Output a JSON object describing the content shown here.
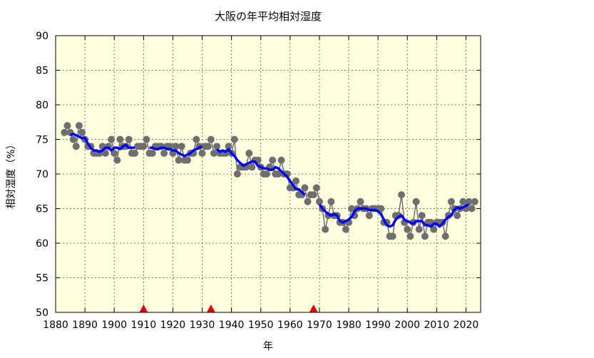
{
  "chart_data": {
    "type": "line",
    "title": "大阪の年平均相対湿度",
    "xlabel": "年",
    "ylabel": "相対湿度（%）",
    "xlim": [
      1880,
      2025
    ],
    "ylim": [
      50,
      90
    ],
    "xticks": [
      1880,
      1890,
      1900,
      1910,
      1920,
      1930,
      1940,
      1950,
      1960,
      1970,
      1980,
      1990,
      2000,
      2010,
      2020
    ],
    "yticks": [
      50,
      55,
      60,
      65,
      70,
      75,
      80,
      85,
      90
    ],
    "grid": true,
    "colors": {
      "background": "#ffffe0",
      "points": "#6e6e6e",
      "moving_average": "#0000ff",
      "markers": "#dd0000"
    },
    "series": [
      {
        "kind": "annual",
        "x": [
          1883,
          1884,
          1885,
          1886,
          1887,
          1888,
          1889,
          1890,
          1891,
          1892,
          1893,
          1894,
          1895,
          1896,
          1897,
          1898,
          1899,
          1900,
          1901,
          1902,
          1903,
          1904,
          1905,
          1906,
          1907,
          1908,
          1909,
          1910,
          1911,
          1912,
          1913,
          1914,
          1915,
          1916,
          1917,
          1918,
          1919,
          1920,
          1921,
          1922,
          1923,
          1924,
          1925,
          1926,
          1927,
          1928,
          1929,
          1930,
          1931,
          1932,
          1933,
          1934,
          1935,
          1936,
          1937,
          1938,
          1939,
          1940,
          1941,
          1942,
          1943,
          1944,
          1945,
          1946,
          1947,
          1948,
          1949,
          1950,
          1951,
          1952,
          1953,
          1954,
          1955,
          1956,
          1957,
          1958,
          1959,
          1960,
          1961,
          1962,
          1963,
          1964,
          1965,
          1966,
          1967,
          1968,
          1969,
          1970,
          1971,
          1972,
          1973,
          1974,
          1975,
          1976,
          1977,
          1978,
          1979,
          1980,
          1981,
          1982,
          1983,
          1984,
          1985,
          1986,
          1987,
          1988,
          1989,
          1990,
          1991,
          1992,
          1993,
          1994,
          1995,
          1996,
          1997,
          1998,
          1999,
          2000,
          2001,
          2002,
          2003,
          2004,
          2005,
          2006,
          2007,
          2008,
          2009,
          2010,
          2011,
          2012,
          2013,
          2014,
          2015,
          2016,
          2017,
          2018,
          2019,
          2020,
          2021,
          2022,
          2023
        ],
        "y": [
          76,
          77,
          76,
          75,
          74,
          77,
          76,
          75,
          74,
          74,
          73,
          73,
          73,
          74,
          73,
          74,
          75,
          73,
          72,
          75,
          74,
          74,
          75,
          73,
          73,
          74,
          74,
          74,
          75,
          73,
          73,
          74,
          74,
          74,
          73,
          74,
          74,
          73,
          74,
          72,
          74,
          72,
          72,
          73,
          73,
          75,
          74,
          73,
          74,
          74,
          75,
          73,
          74,
          73,
          73,
          73,
          74,
          73,
          75,
          70,
          71,
          71,
          71,
          73,
          71,
          72,
          72,
          71,
          70,
          70,
          71,
          72,
          70,
          70,
          72,
          70,
          70,
          68,
          68,
          69,
          67,
          67,
          68,
          66,
          67,
          67,
          68,
          66,
          65,
          62,
          64,
          66,
          64,
          64,
          63,
          63,
          62,
          63,
          65,
          64,
          65,
          66,
          65,
          65,
          64,
          65,
          65,
          65,
          65,
          63,
          63,
          61,
          61,
          64,
          64,
          67,
          63,
          62,
          61,
          63,
          66,
          62,
          64,
          61,
          63,
          63,
          62,
          63,
          63,
          63,
          61,
          64,
          66,
          65,
          64,
          65,
          66,
          65,
          66,
          65,
          66
        ]
      },
      {
        "kind": "5-year moving average",
        "window": 5
      }
    ],
    "relocation_markers": [
      1910,
      1933,
      1968
    ]
  }
}
